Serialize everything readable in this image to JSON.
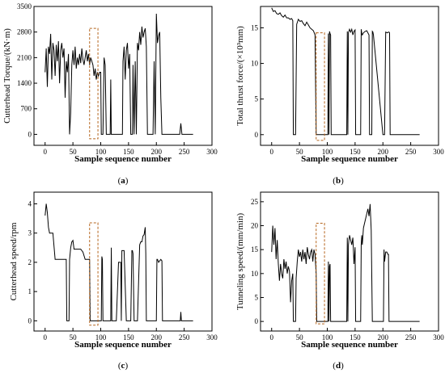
{
  "chart_data": [
    {
      "id": "a",
      "type": "line",
      "caption_letter": "a",
      "xlabel": "Sample sequence number",
      "ylabel": "Cutterhead Torque/(kN·m)",
      "xlim": [
        -20,
        300
      ],
      "ylim": [
        -300,
        3500
      ],
      "xticks": [
        0,
        50,
        100,
        150,
        200,
        250,
        300
      ],
      "yticks": [
        0,
        700,
        1400,
        2100,
        2800,
        3500
      ],
      "highlight": [
        80,
        95,
        -120,
        2900
      ],
      "series": [
        {
          "x": [
            0,
            2,
            4,
            6,
            8,
            10,
            12,
            14,
            16,
            18,
            20,
            22,
            24,
            26,
            28,
            30,
            32,
            34,
            36,
            38,
            40,
            42,
            44,
            46,
            48,
            50,
            52,
            54,
            56,
            58,
            60,
            62,
            64,
            66,
            68,
            70,
            72,
            74,
            76,
            78,
            80,
            82,
            84,
            86,
            88,
            90,
            92,
            94,
            96,
            98,
            100,
            101,
            102,
            103,
            104,
            106,
            108,
            110,
            112,
            114,
            116,
            117,
            118,
            119,
            120,
            122,
            124,
            126,
            128,
            130,
            132,
            134,
            136,
            137,
            138,
            139,
            140,
            142,
            144,
            146,
            148,
            150,
            152,
            154,
            156,
            157,
            158,
            160,
            162,
            164,
            166,
            168,
            170,
            172,
            174,
            176,
            178,
            180,
            182,
            184,
            186,
            188,
            190,
            192,
            194,
            196,
            198,
            200,
            202,
            204,
            206,
            208,
            210,
            212,
            214,
            216,
            218,
            220,
            222,
            224,
            226,
            228,
            230,
            232,
            234,
            236,
            238,
            240,
            242,
            244,
            246,
            248,
            250,
            252,
            254,
            256,
            258,
            260,
            262,
            264,
            266
          ],
          "y": [
            1700,
            2350,
            1300,
            2400,
            2200,
            2750,
            1500,
            2500,
            2300,
            1600,
            2450,
            2000,
            2550,
            1400,
            2300,
            2500,
            2100,
            2350,
            1000,
            2000,
            1700,
            2200,
            0,
            600,
            1900,
            2300,
            1900,
            2400,
            1800,
            2100,
            1900,
            2200,
            1950,
            2350,
            2050,
            1900,
            2100,
            2300,
            2000,
            2200,
            1900,
            2100,
            2000,
            1900,
            1600,
            1800,
            1500,
            1700,
            1600,
            1700,
            1700,
            0,
            0,
            0,
            0,
            2100,
            1900,
            0,
            0,
            0,
            0,
            0,
            1500,
            0,
            0,
            0,
            0,
            0,
            0,
            0,
            0,
            0,
            0,
            0,
            0,
            0,
            2000,
            2400,
            1500,
            2300,
            2500,
            1800,
            2200,
            0,
            0,
            0,
            1900,
            0,
            2000,
            0,
            2500,
            2300,
            2800,
            2450,
            2950,
            2650,
            2800,
            2900,
            2400,
            0,
            0,
            0,
            0,
            0,
            0,
            2000,
            0,
            3300,
            2500,
            2700,
            2800,
            1000,
            0,
            0,
            0,
            0,
            0,
            0,
            0,
            0,
            0,
            0,
            0,
            0,
            0,
            0,
            0,
            0,
            0,
            300,
            0,
            0,
            0,
            0,
            0,
            0,
            0,
            0,
            0,
            0,
            0
          ]
        }
      ]
    },
    {
      "id": "b",
      "type": "line",
      "caption_letter": "b",
      "xlabel": "Sample sequence number",
      "ylabel": "Total thrust force/(×10³mm)",
      "xlim": [
        -20,
        300
      ],
      "ylim": [
        -1.5,
        18
      ],
      "xticks": [
        0,
        50,
        100,
        150,
        200,
        250,
        300
      ],
      "yticks": [
        0,
        5,
        10,
        15
      ],
      "highlight": [
        80,
        95,
        -0.8,
        14.3
      ],
      "series": [
        {
          "x": [
            0,
            3,
            6,
            9,
            12,
            15,
            18,
            21,
            24,
            27,
            30,
            33,
            36,
            38,
            39,
            40,
            41,
            42,
            43,
            45,
            48,
            51,
            54,
            57,
            60,
            63,
            66,
            69,
            72,
            75,
            78,
            80,
            81,
            82,
            100,
            101,
            102,
            103,
            104,
            105,
            106,
            107,
            108,
            109,
            110,
            135,
            136,
            137,
            138,
            140,
            142,
            144,
            146,
            148,
            150,
            151,
            152,
            153,
            160,
            161,
            162,
            163,
            165,
            168,
            171,
            175,
            176,
            178,
            180,
            181,
            182,
            183,
            200,
            201,
            202,
            203,
            205,
            208,
            210,
            211,
            212,
            213,
            214,
            266
          ],
          "y": [
            17.8,
            17.3,
            17.4,
            17.0,
            16.9,
            17.1,
            16.7,
            16.5,
            16.8,
            16.4,
            16.4,
            16.2,
            16.3,
            16.0,
            0,
            0,
            0,
            0,
            0,
            15.5,
            16.2,
            15.9,
            16.0,
            15.6,
            15.3,
            15.8,
            15.4,
            15.0,
            14.8,
            14.6,
            14.0,
            0,
            0,
            0,
            0,
            0,
            14.2,
            0,
            14.5,
            14.2,
            14.0,
            0,
            0,
            0,
            0,
            0,
            14.5,
            0,
            14.3,
            14.8,
            14.4,
            14.8,
            14.0,
            14.5,
            14.7,
            0,
            0,
            0,
            0,
            14.8,
            14.2,
            14.0,
            14.3,
            14.5,
            14.6,
            14.0,
            0,
            0,
            0,
            14.5,
            14.4,
            14.0,
            0,
            0,
            0,
            0,
            14.4,
            14.3,
            14.4,
            14.4,
            14.3,
            0,
            0,
            0
          ]
        }
      ]
    },
    {
      "id": "c",
      "type": "line",
      "caption_letter": "c",
      "xlabel": "Sample sequence number",
      "ylabel": "Cutterhead speed/rpm",
      "xlim": [
        -20,
        300
      ],
      "ylim": [
        -0.35,
        4.4
      ],
      "xticks": [
        0,
        50,
        100,
        150,
        200,
        250,
        300
      ],
      "yticks": [
        0,
        1,
        2,
        3,
        4
      ],
      "highlight": [
        80,
        95,
        -0.15,
        3.35
      ],
      "series": [
        {
          "x": [
            0,
            2,
            4,
            6,
            8,
            10,
            14,
            18,
            22,
            26,
            30,
            34,
            36,
            38,
            39,
            40,
            41,
            42,
            43,
            44,
            46,
            48,
            50,
            52,
            56,
            60,
            64,
            68,
            72,
            76,
            80,
            81,
            82,
            100,
            101,
            102,
            103,
            104,
            106,
            110,
            117,
            118,
            119,
            120,
            124,
            128,
            132,
            136,
            137,
            138,
            139,
            140,
            142,
            146,
            150,
            154,
            156,
            157,
            158,
            160,
            162,
            166,
            170,
            172,
            174,
            176,
            178,
            180,
            181,
            182,
            190,
            195,
            200,
            201,
            202,
            204,
            208,
            210,
            211,
            212,
            243,
            244,
            245,
            246,
            266
          ],
          "y": [
            3.6,
            4.0,
            3.7,
            3.2,
            3.0,
            3.0,
            3.0,
            2.1,
            2.1,
            2.1,
            2.1,
            2.1,
            2.1,
            2.1,
            0,
            0,
            0,
            0,
            0,
            2.1,
            2.5,
            2.7,
            2.75,
            2.45,
            2.45,
            2.45,
            2.45,
            2.35,
            2.1,
            2.1,
            2.1,
            0,
            0,
            0,
            0,
            2.2,
            2.1,
            0,
            0,
            0,
            0,
            0,
            2.5,
            0,
            0,
            0,
            2.0,
            2.0,
            0,
            2.4,
            2.4,
            2.4,
            2.4,
            0,
            0,
            0,
            2.4,
            2.4,
            2.3,
            0,
            0,
            0,
            2.6,
            2.7,
            2.7,
            2.9,
            2.95,
            3.2,
            2.3,
            0,
            0,
            0,
            0,
            2.1,
            2.1,
            2.0,
            2.1,
            2.05,
            0,
            0,
            0,
            0.3,
            0,
            0,
            0
          ]
        }
      ]
    },
    {
      "id": "d",
      "type": "line",
      "caption_letter": "d",
      "xlabel": "Sample sequence number",
      "ylabel": "Tunneling speed/(mm/min)",
      "xlim": [
        -20,
        300
      ],
      "ylim": [
        -2,
        27
      ],
      "xticks": [
        0,
        50,
        100,
        150,
        200,
        250,
        300
      ],
      "yticks": [
        0,
        5,
        10,
        15,
        20,
        25
      ],
      "highlight": [
        80,
        95,
        -0.5,
        20.5
      ],
      "series": [
        {
          "x": [
            0,
            2,
            4,
            6,
            8,
            10,
            12,
            14,
            16,
            18,
            20,
            22,
            24,
            26,
            28,
            30,
            32,
            34,
            36,
            38,
            39,
            40,
            41,
            42,
            43,
            44,
            46,
            48,
            50,
            52,
            54,
            56,
            58,
            60,
            62,
            64,
            66,
            68,
            70,
            72,
            74,
            76,
            78,
            80,
            81,
            82,
            100,
            101,
            102,
            103,
            104,
            105,
            106,
            107,
            108,
            109,
            110,
            135,
            136,
            137,
            138,
            140,
            142,
            144,
            146,
            148,
            150,
            151,
            152,
            153,
            160,
            161,
            162,
            163,
            165,
            167,
            169,
            171,
            173,
            175,
            177,
            179,
            181,
            182,
            183,
            200,
            201,
            202,
            203,
            205,
            207,
            209,
            210,
            211,
            212,
            266
          ],
          "y": [
            14.5,
            20.0,
            16.0,
            19.5,
            13.0,
            17.0,
            12.0,
            8.5,
            12.0,
            10.0,
            9.0,
            13.0,
            11.0,
            12.5,
            10.0,
            11.5,
            10.5,
            4.0,
            8.5,
            10.0,
            0,
            0,
            0,
            0,
            0,
            9.0,
            12.5,
            15.0,
            13.5,
            14.5,
            12.5,
            15.0,
            13.0,
            14.5,
            12.0,
            15.5,
            14.0,
            13.0,
            14.5,
            15.0,
            12.5,
            15.0,
            14.0,
            10.0,
            0,
            0,
            0,
            0,
            12.5,
            0,
            11.5,
            12.0,
            0,
            0,
            0,
            0,
            0,
            0,
            17.5,
            0,
            16.0,
            18.0,
            17.0,
            16.0,
            17.5,
            12.0,
            15.5,
            0,
            0,
            0,
            0,
            16.0,
            18.0,
            16.0,
            19.5,
            20.5,
            21.5,
            22.5,
            23.5,
            22.0,
            24.5,
            19.0,
            0,
            0,
            0,
            0,
            0,
            15.0,
            12.5,
            14.5,
            14.5,
            14.0,
            14.0,
            0,
            0,
            0
          ]
        }
      ]
    }
  ]
}
